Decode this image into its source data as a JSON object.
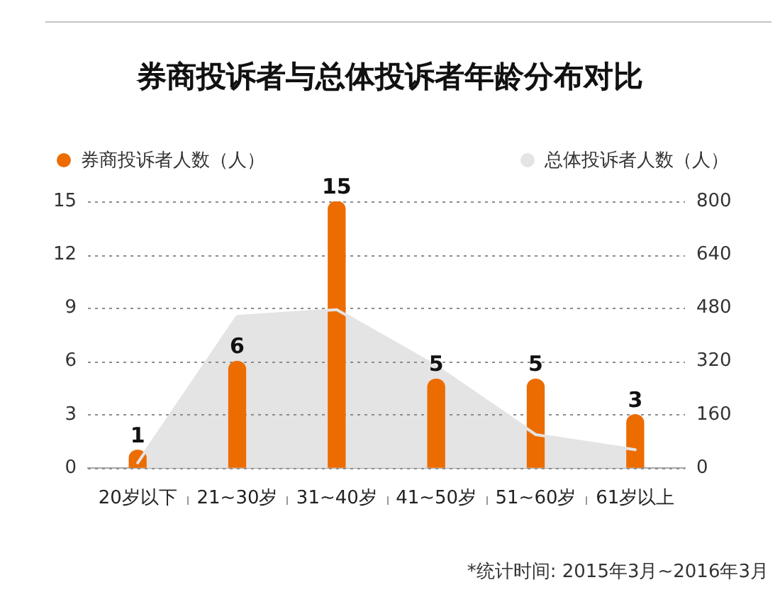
{
  "chart_data": {
    "type": "bar",
    "title": "券商投诉者与总体投诉者年龄分布对比",
    "categories": [
      "20岁以下",
      "21~30岁",
      "31~40岁",
      "41~50岁",
      "51~60岁",
      "61岁以上"
    ],
    "series": [
      {
        "name": "券商投诉者人数（人）",
        "color": "#ec6c00",
        "values": [
          1,
          6,
          15,
          5,
          5,
          3
        ],
        "value_labels": [
          "1",
          "6",
          "15",
          "5",
          "5",
          "3"
        ]
      },
      {
        "name": "总体投诉者人数（人）",
        "type": "area",
        "axis": "y2",
        "color": "#e4e4e4",
        "values": [
          15,
          455,
          475,
          305,
          100,
          55
        ]
      }
    ],
    "ylim": [
      0,
      15
    ],
    "yticks": [
      0,
      3,
      6,
      9,
      12,
      15
    ],
    "y2lim": [
      0,
      800
    ],
    "y2ticks": [
      0,
      160,
      320,
      480,
      640,
      800
    ],
    "grid": "y",
    "legend": "top",
    "annotations": [
      "*统计时间: 2015年3月~2016年3月"
    ]
  }
}
